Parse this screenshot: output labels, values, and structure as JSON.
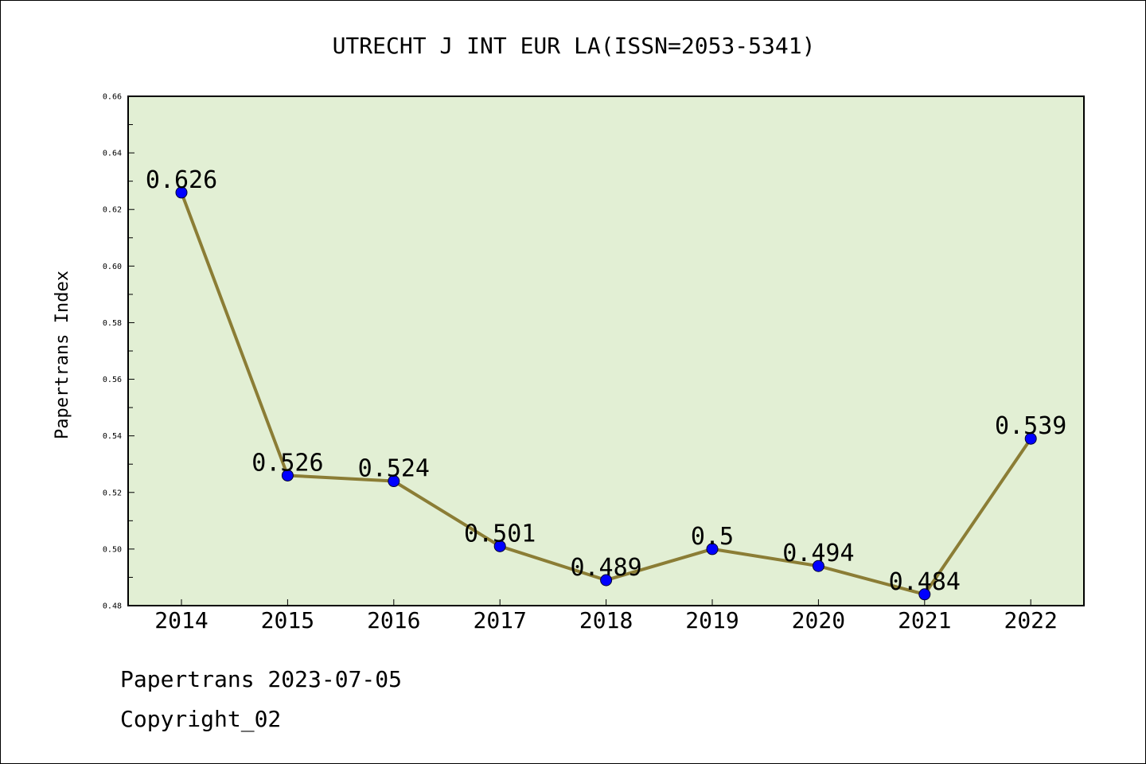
{
  "chart_data": {
    "type": "line",
    "title": "UTRECHT J INT EUR LA(ISSN=2053-5341)",
    "xlabel": "",
    "ylabel": "Papertrans Index",
    "categories": [
      "2014",
      "2015",
      "2016",
      "2017",
      "2018",
      "2019",
      "2020",
      "2021",
      "2022"
    ],
    "values": [
      0.626,
      0.526,
      0.524,
      0.501,
      0.489,
      0.5,
      0.494,
      0.484,
      0.539
    ],
    "data_labels": [
      "0.626",
      "0.526",
      "0.524",
      "0.501",
      "0.489",
      "0.5",
      "0.494",
      "0.484",
      "0.539"
    ],
    "ylim": [
      0.48,
      0.66
    ],
    "y_ticks": [
      "0.48",
      "0.50",
      "0.52",
      "0.54",
      "0.56",
      "0.58",
      "0.60",
      "0.62",
      "0.64",
      "0.66"
    ],
    "grid": false,
    "colors": {
      "plot_background": "#e2efd4",
      "line": "#8b7d35",
      "marker": "#0000ff",
      "axes": "#000000"
    }
  },
  "footer": {
    "line1": "Papertrans 2023-07-05",
    "line2": "Copyright_02"
  }
}
